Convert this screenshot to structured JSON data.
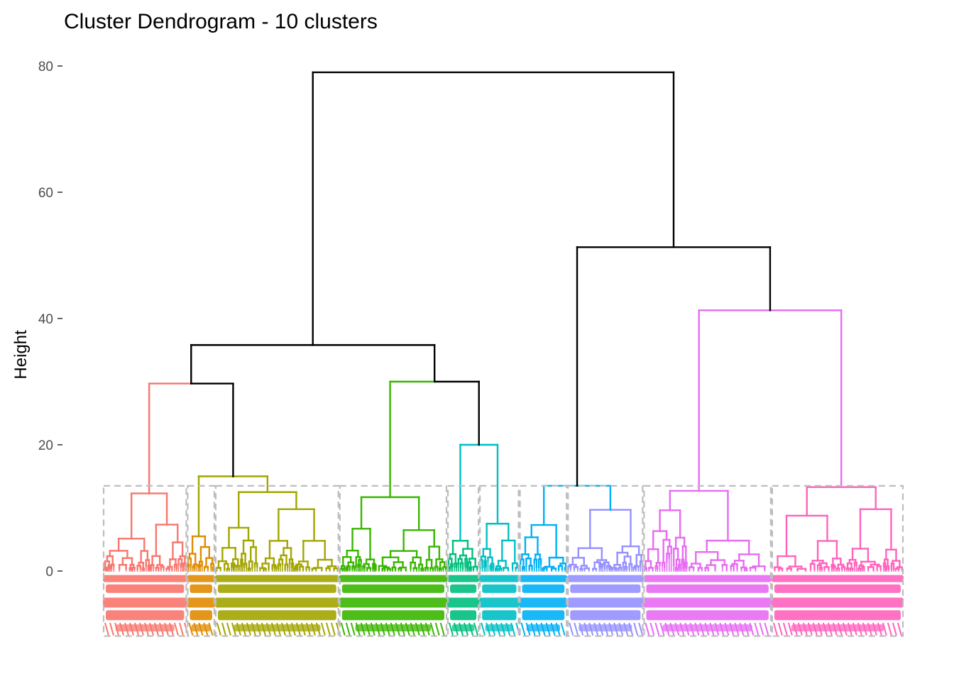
{
  "chart_data": {
    "type": "dendrogram",
    "title": "Cluster Dendrogram - 10 clusters",
    "xlabel": "",
    "ylabel": "Height",
    "ylim": [
      -10,
      80
    ],
    "yticks": [
      0,
      20,
      40,
      60,
      80
    ],
    "grid": false,
    "k": 10,
    "rect_cut_height": 13.5,
    "root_height": 79,
    "colors": {
      "trunk": "#000000",
      "rect_border": "#bdbdbd",
      "clusters": [
        "#F8766D",
        "#E08B00",
        "#A3A500",
        "#39B600",
        "#00BF7D",
        "#00BFC4",
        "#00B0F6",
        "#9590FF",
        "#E76BF3",
        "#FF62BC"
      ]
    },
    "clusters": [
      {
        "id": 1,
        "color": "#F8766D",
        "height": 12.3,
        "x_start": 0.0,
        "x_end": 0.105
      },
      {
        "id": 2,
        "color": "#E08B00",
        "height": 5.5,
        "x_start": 0.105,
        "x_end": 0.14
      },
      {
        "id": 3,
        "color": "#A3A500",
        "height": 12.5,
        "x_start": 0.14,
        "x_end": 0.295
      },
      {
        "id": 4,
        "color": "#39B600",
        "height": 11.7,
        "x_start": 0.295,
        "x_end": 0.43
      },
      {
        "id": 5,
        "color": "#00BF7D",
        "height": 4.8,
        "x_start": 0.43,
        "x_end": 0.47
      },
      {
        "id": 6,
        "color": "#00BFC4",
        "height": 7.5,
        "x_start": 0.47,
        "x_end": 0.52
      },
      {
        "id": 7,
        "color": "#00B0F6",
        "height": 7.3,
        "x_start": 0.52,
        "x_end": 0.58
      },
      {
        "id": 8,
        "color": "#9590FF",
        "height": 9.7,
        "x_start": 0.58,
        "x_end": 0.675
      },
      {
        "id": 9,
        "color": "#E76BF3",
        "height": 12.7,
        "x_start": 0.675,
        "x_end": 0.835
      },
      {
        "id": 10,
        "color": "#FF62BC",
        "height": 13.3,
        "x_start": 0.835,
        "x_end": 1.0
      }
    ],
    "merges": [
      {
        "children": [
          1,
          2,
          3
        ],
        "sub_merges": [
          {
            "a": 2,
            "b": 3,
            "height": 15.0,
            "color": "#A3A500"
          },
          {
            "a": 1,
            "b": "2+3",
            "height": 29.7,
            "color": "#000000"
          }
        ],
        "top_color": "#F8766D"
      },
      {
        "a": "1-3",
        "b": "4-6",
        "height": 35.8
      },
      {
        "a": 5,
        "b": 6,
        "height": 20.0,
        "color": "#00BFC4"
      },
      {
        "a": 4,
        "b": "5+6",
        "height": 30.0
      },
      {
        "a": 7,
        "b": 8,
        "height": 13.5
      },
      {
        "a": 9,
        "b": 10,
        "height": 41.3,
        "color": "#E76BF3"
      },
      {
        "a": "7+8",
        "b": "9+10",
        "height": 51.3
      },
      {
        "a": "1-6",
        "b": "7-10",
        "height": 79.0
      }
    ]
  }
}
